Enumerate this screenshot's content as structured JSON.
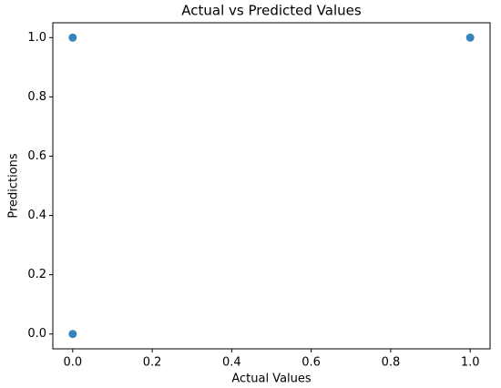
{
  "chart_data": {
    "type": "scatter",
    "title": "Actual vs Predicted Values",
    "x_label": "Actual Values",
    "y_label": "Predictions",
    "series": [
      {
        "color": "#1f77b4",
        "x": [
          0,
          0,
          1
        ],
        "values": [
          1,
          0,
          1
        ]
      }
    ],
    "xlim": [
      -0.05,
      1.05
    ],
    "ylim": [
      -0.05,
      1.05
    ],
    "xticks": [
      {
        "value": 0,
        "label": "0.0"
      },
      0.2,
      0.4,
      0.6,
      0.8,
      {
        "value": 1,
        "label": "1.0"
      }
    ],
    "yticks": [
      {
        "value": 0,
        "label": "0.0"
      },
      0.2,
      0.4,
      0.6,
      0.8,
      {
        "value": 1,
        "label": "1.0"
      }
    ],
    "grid": false
  }
}
